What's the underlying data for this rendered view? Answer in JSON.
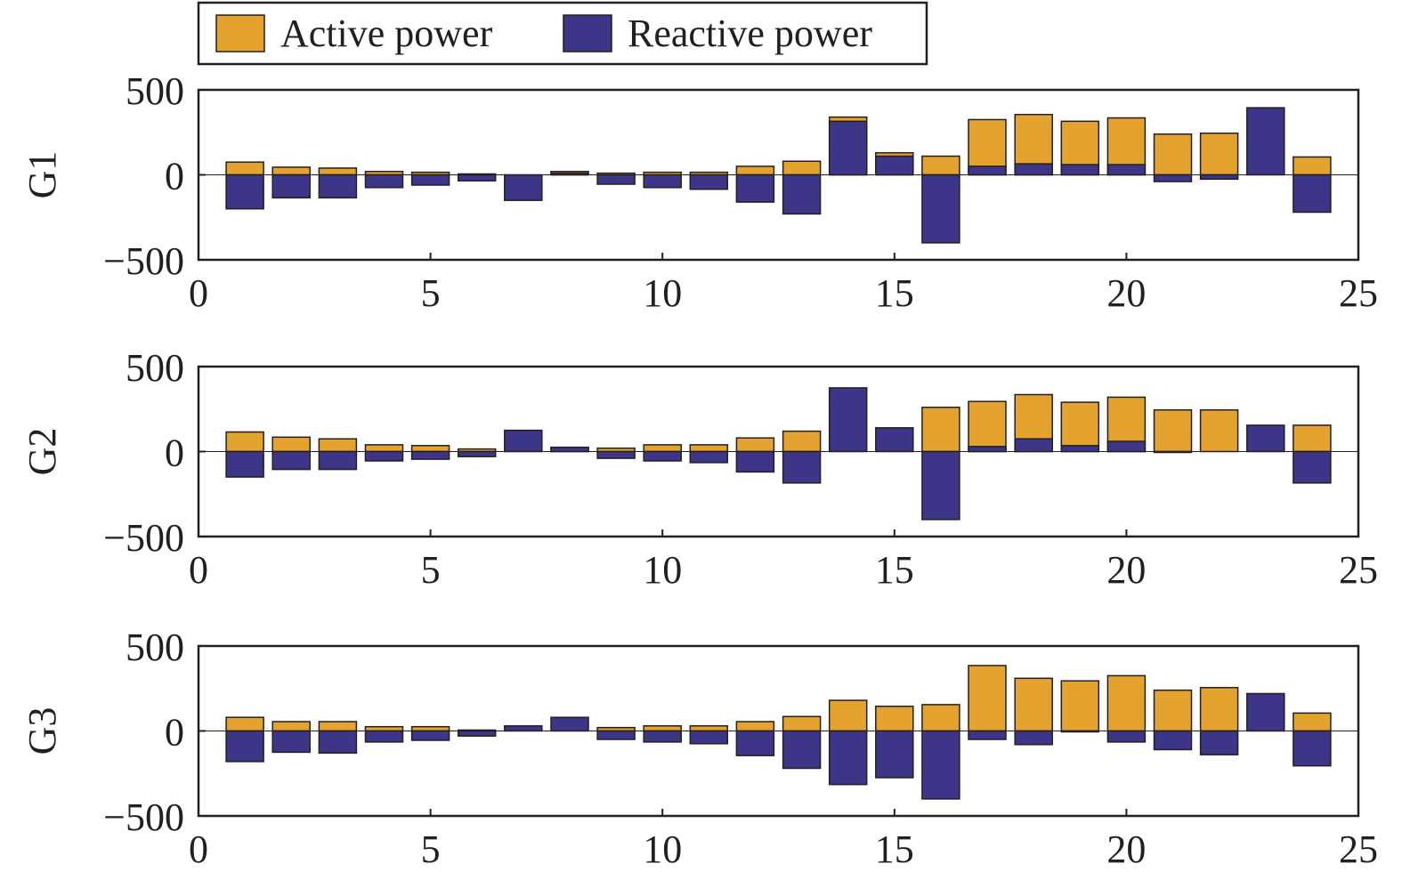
{
  "chart_data": {
    "type": "bar",
    "stacking": "overlaid",
    "legend": {
      "placement": "top-left",
      "entries": [
        {
          "name": "Active power",
          "color": "#e3a32e"
        },
        {
          "name": "Reactive power",
          "color": "#3d3688"
        }
      ]
    },
    "x": [
      1,
      2,
      3,
      4,
      5,
      6,
      7,
      8,
      9,
      10,
      11,
      12,
      13,
      14,
      15,
      16,
      17,
      18,
      19,
      20,
      21,
      22,
      23,
      24
    ],
    "xlim": [
      0,
      25
    ],
    "xticks": [
      0,
      5,
      10,
      15,
      20,
      25
    ],
    "ylim": [
      -500,
      500
    ],
    "yticks": [
      500,
      0,
      -500
    ],
    "ytick_labels": [
      "500",
      "0",
      "−500"
    ],
    "grid": false,
    "baseline": 0,
    "panels": [
      {
        "ylabel": "G1",
        "series": [
          {
            "name": "Active power",
            "values": [
              75,
              45,
              40,
              20,
              15,
              5,
              0,
              20,
              10,
              15,
              15,
              50,
              80,
              340,
              130,
              110,
              325,
              355,
              315,
              335,
              240,
              245,
              0,
              105
            ]
          },
          {
            "name": "Reactive power",
            "values": [
              -200,
              -135,
              -135,
              -75,
              -60,
              -35,
              -150,
              10,
              -55,
              -75,
              -85,
              -160,
              -230,
              315,
              110,
              -400,
              50,
              65,
              60,
              60,
              -40,
              -25,
              395,
              -220
            ]
          }
        ]
      },
      {
        "ylabel": "G2",
        "series": [
          {
            "name": "Active power",
            "values": [
              115,
              85,
              75,
              40,
              35,
              15,
              0,
              25,
              20,
              40,
              40,
              80,
              120,
              0,
              0,
              260,
              295,
              335,
              290,
              320,
              245,
              245,
              0,
              155
            ]
          },
          {
            "name": "Reactive power",
            "values": [
              -150,
              -105,
              -105,
              -55,
              -45,
              -30,
              125,
              25,
              -40,
              -55,
              -65,
              -120,
              -185,
              375,
              140,
              -400,
              30,
              75,
              35,
              60,
              -5,
              0,
              155,
              -185
            ]
          }
        ]
      },
      {
        "ylabel": "G3",
        "series": [
          {
            "name": "Active power",
            "values": [
              80,
              55,
              55,
              25,
              25,
              5,
              0,
              0,
              20,
              30,
              30,
              55,
              85,
              180,
              145,
              155,
              385,
              310,
              295,
              325,
              240,
              255,
              0,
              105
            ]
          },
          {
            "name": "Reactive power",
            "values": [
              -180,
              -125,
              -130,
              -65,
              -55,
              -30,
              30,
              80,
              -50,
              -65,
              -75,
              -145,
              -220,
              -315,
              -275,
              -400,
              -50,
              -80,
              -5,
              -65,
              -110,
              -140,
              220,
              -205
            ]
          }
        ]
      }
    ]
  }
}
